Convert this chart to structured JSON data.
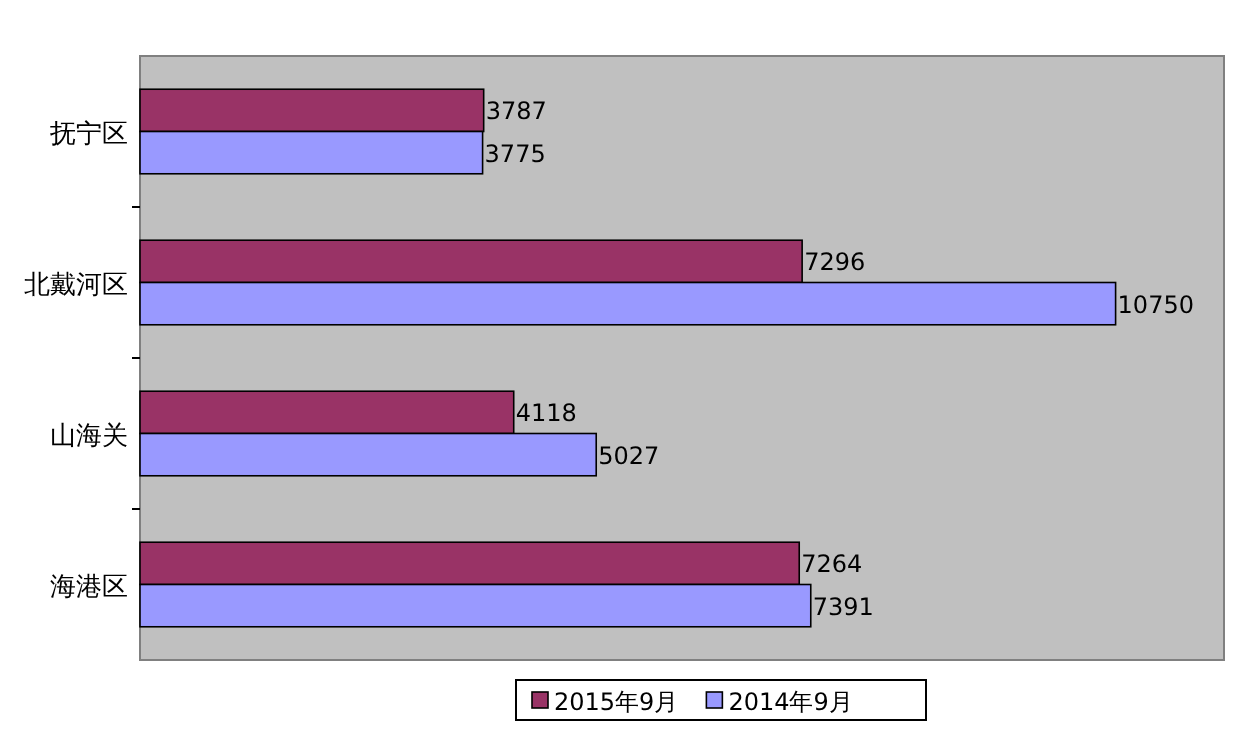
{
  "chart_data": {
    "type": "bar",
    "orientation": "horizontal",
    "categories": [
      "抚宁区",
      "北戴河区",
      "山海关",
      "海港区"
    ],
    "series": [
      {
        "name": "2015年9月",
        "color": "#993366",
        "values": [
          3787,
          7296,
          4118,
          7264
        ]
      },
      {
        "name": "2014年9月",
        "color": "#9999ff",
        "values": [
          3775,
          10750,
          5027,
          7391
        ]
      }
    ],
    "data_labels": true,
    "legend": "bottom"
  }
}
